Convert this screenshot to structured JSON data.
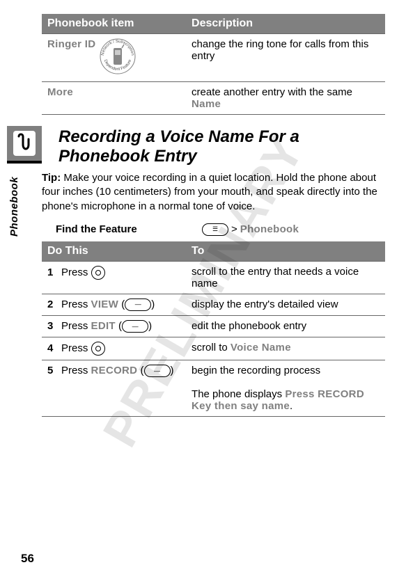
{
  "page_number": "56",
  "side_tab": "Phonebook",
  "watermark": "PRELIMINARY",
  "table1": {
    "headers": [
      "Phonebook item",
      "Description"
    ],
    "rows": [
      {
        "item": "Ringer ID",
        "has_badge": true,
        "desc_parts": [
          {
            "t": "change the ring tone for calls from this entry"
          }
        ]
      },
      {
        "item": "More",
        "has_badge": false,
        "desc_parts": [
          {
            "t": "create another entry with the same "
          },
          {
            "t": "Name",
            "ui": true
          }
        ]
      }
    ]
  },
  "section": {
    "heading": "Recording a Voice Name For a Phonebook Entry",
    "tip_label": "Tip:",
    "tip_body": " Make your voice recording in a quiet location. Hold the phone about four inches (10 centimeters) from your mouth, and speak directly into the phone's microphone in a normal tone of voice."
  },
  "feature": {
    "label": "Find the Feature",
    "menu_key": "☰",
    "sep": ">",
    "target": "Phonebook"
  },
  "table2": {
    "headers": [
      "Do This",
      "To"
    ],
    "steps": [
      {
        "num": "1",
        "action": [
          {
            "t": "Press "
          },
          {
            "dpad": true
          }
        ],
        "result": [
          {
            "t": "scroll to the entry that needs a voice name"
          }
        ]
      },
      {
        "num": "2",
        "action": [
          {
            "t": "Press "
          },
          {
            "t": "VIEW",
            "ui": true
          },
          {
            "t": " ("
          },
          {
            "oval": "—"
          },
          {
            "t": ")"
          }
        ],
        "result": [
          {
            "t": "display the entry's detailed view"
          }
        ]
      },
      {
        "num": "3",
        "action": [
          {
            "t": "Press "
          },
          {
            "t": "EDIT",
            "ui": true
          },
          {
            "t": " ("
          },
          {
            "oval": "—"
          },
          {
            "t": ")"
          }
        ],
        "result": [
          {
            "t": "edit the phonebook entry"
          }
        ]
      },
      {
        "num": "4",
        "action": [
          {
            "t": "Press "
          },
          {
            "dpad": true
          }
        ],
        "result": [
          {
            "t": "scroll to "
          },
          {
            "t": "Voice Name",
            "ui": true
          }
        ]
      },
      {
        "num": "5",
        "action": [
          {
            "t": "Press "
          },
          {
            "t": "RECORD",
            "ui": true
          },
          {
            "t": " ("
          },
          {
            "oval": "—"
          },
          {
            "t": ")"
          }
        ],
        "result": [
          {
            "t": "begin the recording process"
          },
          {
            "br": true
          },
          {
            "br": true
          },
          {
            "t": "The phone displays "
          },
          {
            "t": "Press RECORD Key then say name",
            "ui": true
          },
          {
            "t": "."
          }
        ]
      }
    ]
  }
}
